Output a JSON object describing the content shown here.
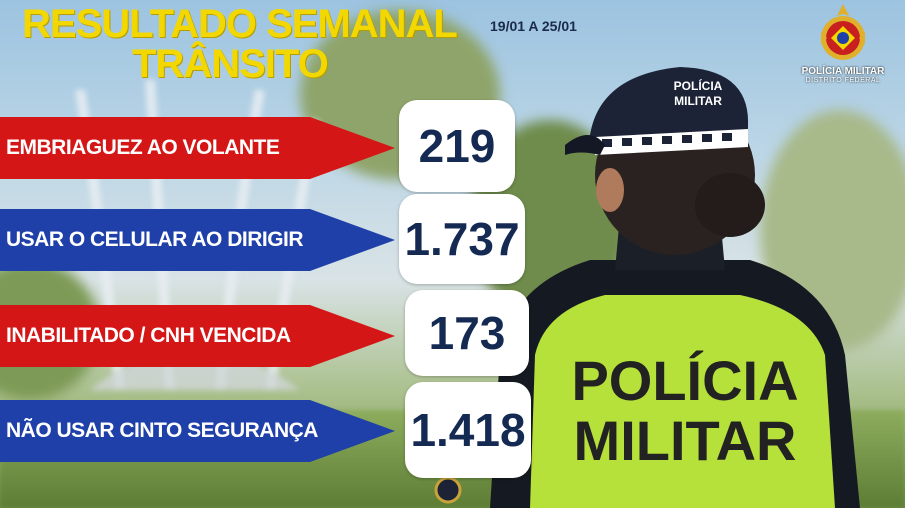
{
  "header": {
    "title_line1": "RESULTADO SEMANAL",
    "title_line2": "TRÂNSITO",
    "date_range": "19/01 A 25/01"
  },
  "logo": {
    "name": "POLÍCIA MILITAR",
    "subtitle": "DISTRITO FEDERAL"
  },
  "officer": {
    "cap_text": "POLÍCIA MILITAR",
    "vest_line1": "POLÍCIA",
    "vest_line2": "MILITAR"
  },
  "stats": [
    {
      "label": "EMBRIAGUEZ  AO  VOLANTE",
      "value": "219",
      "color": "#d51616"
    },
    {
      "label": "USAR O CELULAR AO DIRIGIR",
      "value": "1.737",
      "color": "#1e40a8"
    },
    {
      "label": "INABILITADO / CNH VENCIDA",
      "value": "173",
      "color": "#d51616"
    },
    {
      "label": "NÃO USAR CINTO SEGURANÇA",
      "value": "1.418",
      "color": "#1e40a8"
    }
  ],
  "colors": {
    "title_yellow": "#f2d800",
    "value_text": "#142a52",
    "vest_green": "#b6e03a"
  }
}
